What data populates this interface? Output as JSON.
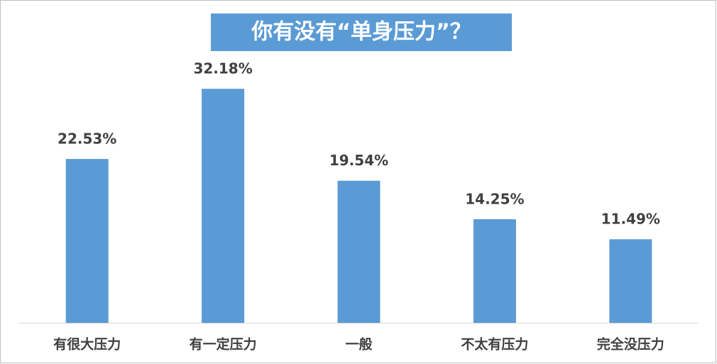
{
  "chart_data": {
    "type": "bar",
    "title": "你有没有“单身压力”？",
    "categories": [
      "有很大压力",
      "有一定压力",
      "一般",
      "不太有压力",
      "完全没压力"
    ],
    "values": [
      22.53,
      32.18,
      19.54,
      14.25,
      11.49
    ],
    "value_labels": [
      "22.53%",
      "32.18%",
      "19.54%",
      "14.25%",
      "11.49%"
    ],
    "color": "#5b9bd5"
  }
}
